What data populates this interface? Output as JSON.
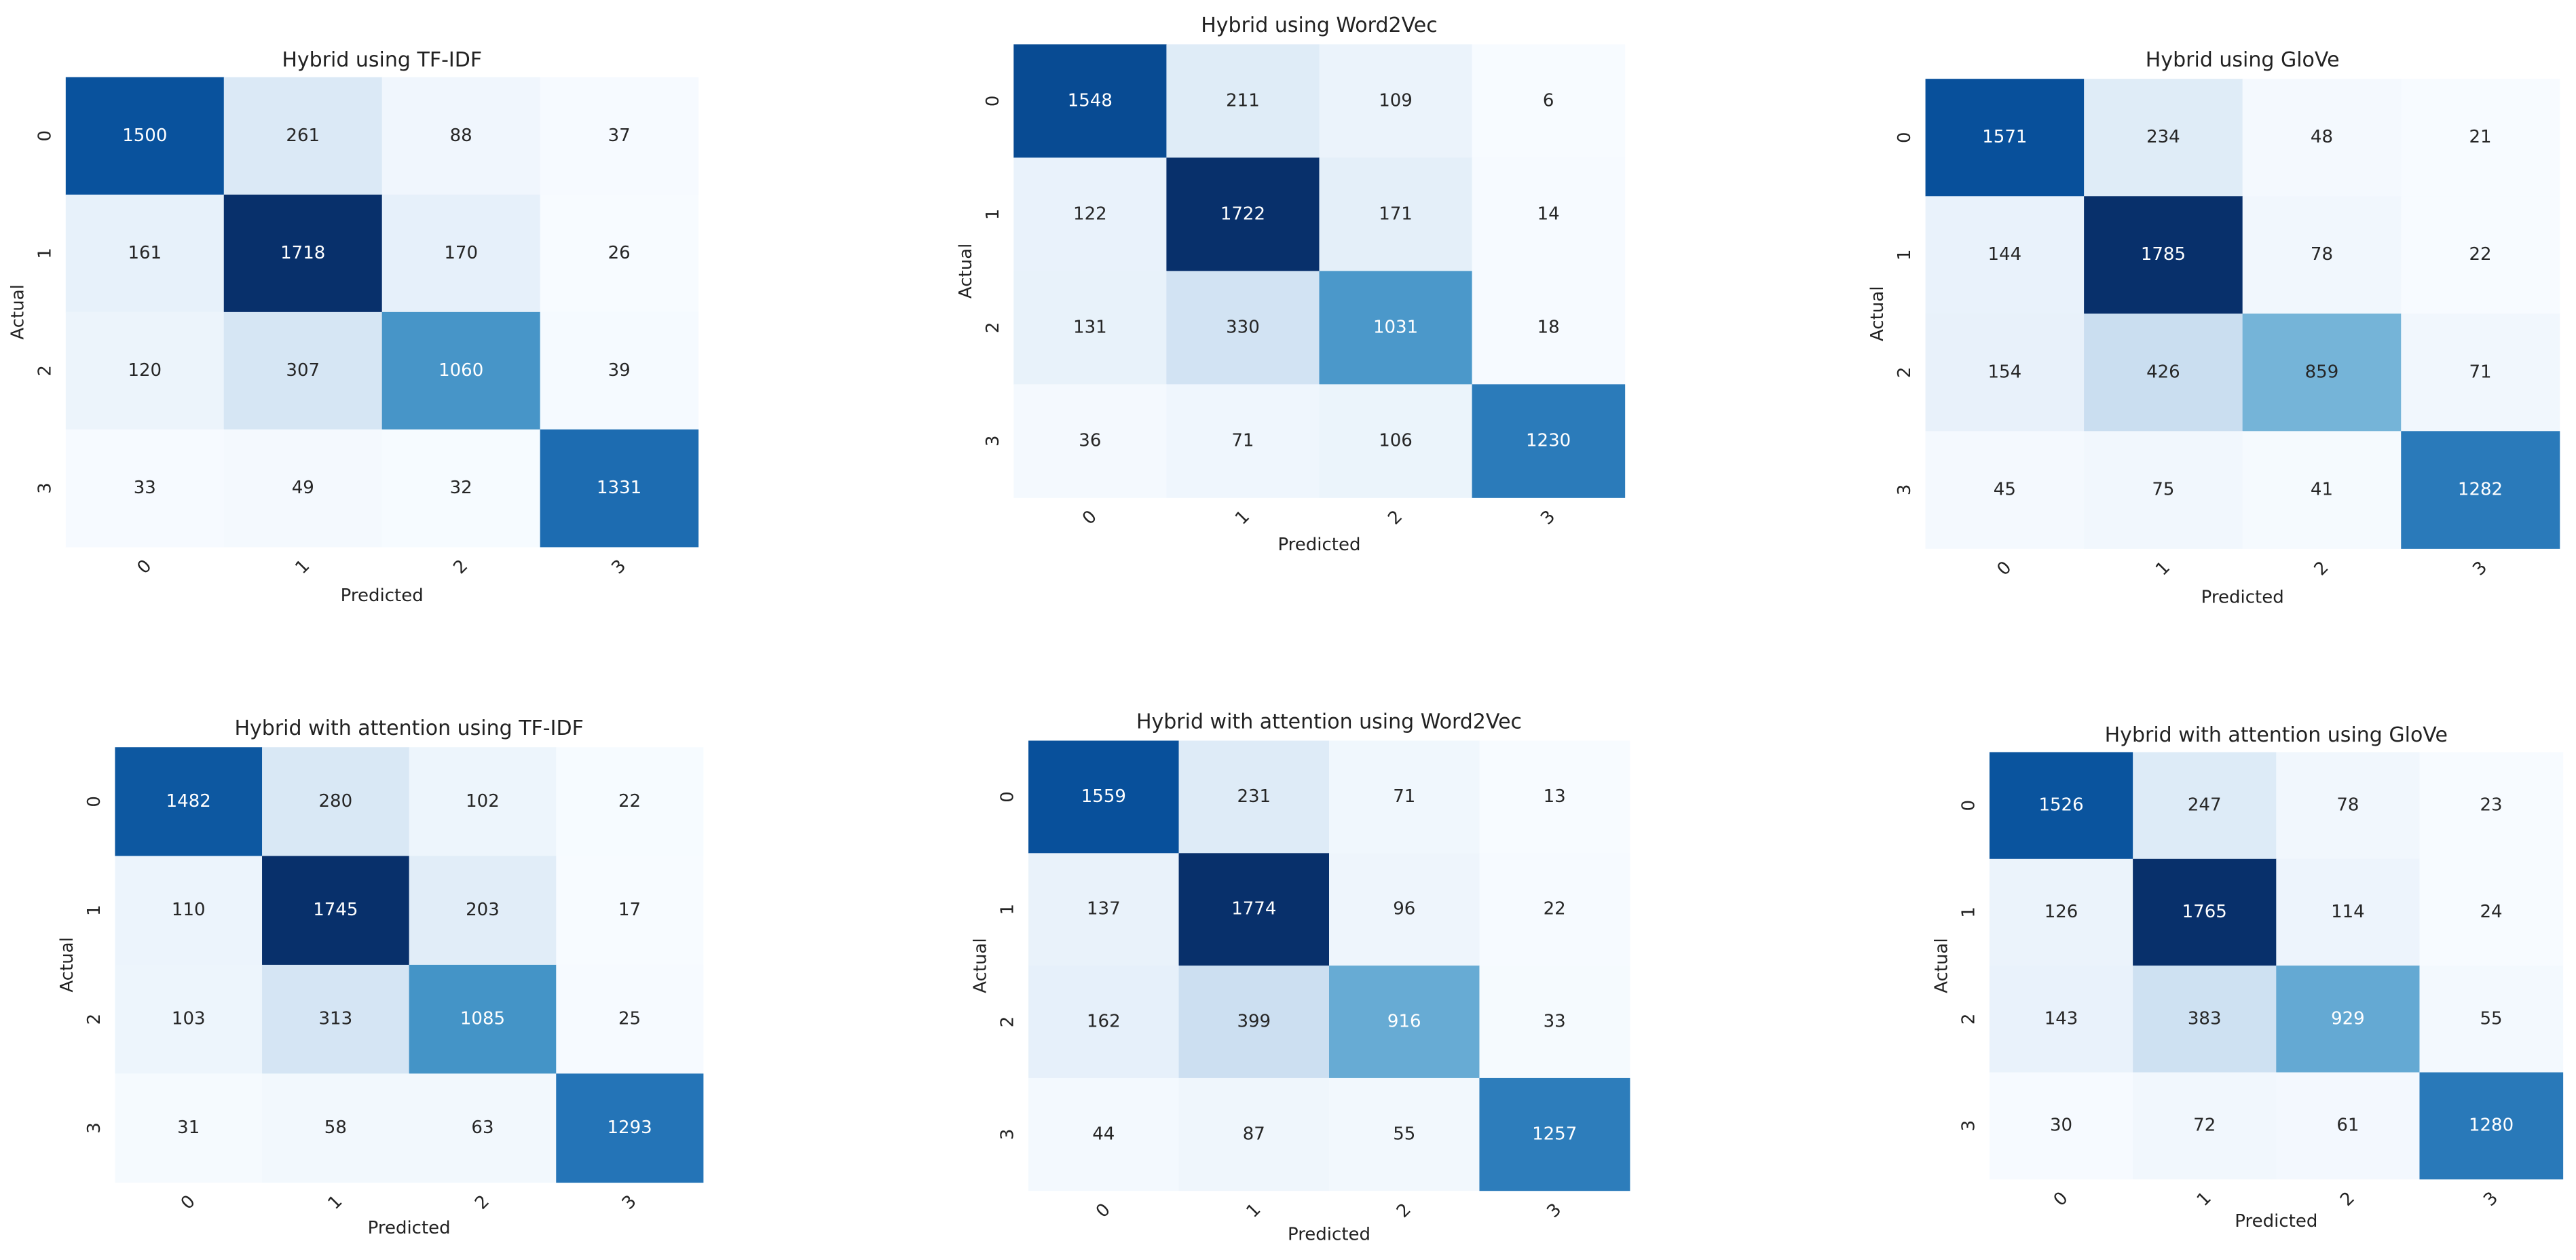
{
  "chart_data": [
    {
      "type": "heatmap",
      "title": "Hybrid using TF-IDF",
      "xlabel": "Predicted",
      "ylabel": "Actual",
      "x_categories": [
        "0",
        "1",
        "2",
        "3"
      ],
      "y_categories": [
        "0",
        "1",
        "2",
        "3"
      ],
      "colormap": "Blues",
      "values": [
        [
          1500,
          261,
          88,
          37
        ],
        [
          161,
          1718,
          170,
          26
        ],
        [
          120,
          307,
          1060,
          39
        ],
        [
          33,
          49,
          32,
          1331
        ]
      ]
    },
    {
      "type": "heatmap",
      "title": "Hybrid using Word2Vec",
      "xlabel": "Predicted",
      "ylabel": "Actual",
      "x_categories": [
        "0",
        "1",
        "2",
        "3"
      ],
      "y_categories": [
        "0",
        "1",
        "2",
        "3"
      ],
      "colormap": "Blues",
      "values": [
        [
          1548,
          211,
          109,
          6
        ],
        [
          122,
          1722,
          171,
          14
        ],
        [
          131,
          330,
          1031,
          18
        ],
        [
          36,
          71,
          106,
          1230
        ]
      ]
    },
    {
      "type": "heatmap",
      "title": "Hybrid using GloVe",
      "xlabel": "Predicted",
      "ylabel": "Actual",
      "x_categories": [
        "0",
        "1",
        "2",
        "3"
      ],
      "y_categories": [
        "0",
        "1",
        "2",
        "3"
      ],
      "colormap": "Blues",
      "values": [
        [
          1571,
          234,
          48,
          21
        ],
        [
          144,
          1785,
          78,
          22
        ],
        [
          154,
          426,
          859,
          71
        ],
        [
          45,
          75,
          41,
          1282
        ]
      ]
    },
    {
      "type": "heatmap",
      "title": "Hybrid with attention using TF-IDF",
      "xlabel": "Predicted",
      "ylabel": "Actual",
      "x_categories": [
        "0",
        "1",
        "2",
        "3"
      ],
      "y_categories": [
        "0",
        "1",
        "2",
        "3"
      ],
      "colormap": "Blues",
      "values": [
        [
          1482,
          280,
          102,
          22
        ],
        [
          110,
          1745,
          203,
          17
        ],
        [
          103,
          313,
          1085,
          25
        ],
        [
          31,
          58,
          63,
          1293
        ]
      ]
    },
    {
      "type": "heatmap",
      "title": "Hybrid with attention using Word2Vec",
      "xlabel": "Predicted",
      "ylabel": "Actual",
      "x_categories": [
        "0",
        "1",
        "2",
        "3"
      ],
      "y_categories": [
        "0",
        "1",
        "2",
        "3"
      ],
      "colormap": "Blues",
      "values": [
        [
          1559,
          231,
          71,
          13
        ],
        [
          137,
          1774,
          96,
          22
        ],
        [
          162,
          399,
          916,
          33
        ],
        [
          44,
          87,
          55,
          1257
        ]
      ]
    },
    {
      "type": "heatmap",
      "title": "Hybrid with attention using GloVe",
      "xlabel": "Predicted",
      "ylabel": "Actual",
      "x_categories": [
        "0",
        "1",
        "2",
        "3"
      ],
      "y_categories": [
        "0",
        "1",
        "2",
        "3"
      ],
      "colormap": "Blues",
      "values": [
        [
          1526,
          247,
          78,
          23
        ],
        [
          126,
          1765,
          114,
          24
        ],
        [
          143,
          383,
          929,
          55
        ],
        [
          30,
          72,
          61,
          1280
        ]
      ]
    }
  ]
}
